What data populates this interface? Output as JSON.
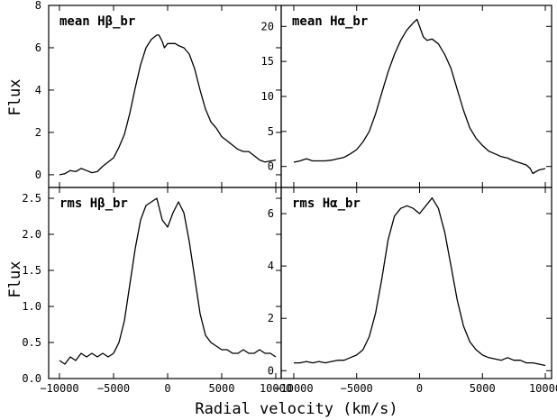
{
  "figure": {
    "ylabel_left": "Flux",
    "xlabel": "Radial velocity (km/s)"
  },
  "chart_data": [
    {
      "type": "line",
      "panel": "top-left",
      "label": "mean Hβ_br",
      "xlim": [
        -11000,
        10500
      ],
      "ylim": [
        -0.6,
        8
      ],
      "xticks": [
        -10000,
        -5000,
        0,
        5000,
        10000
      ],
      "yticks": [
        0,
        2,
        4,
        6,
        8
      ],
      "ytick_labels": [
        "0",
        "2",
        "4",
        "6",
        "8"
      ],
      "series": [
        {
          "x": [
            -10000,
            -9500,
            -9000,
            -8500,
            -8000,
            -7500,
            -7000,
            -6500,
            -6000,
            -5500,
            -5000,
            -4500,
            -4000,
            -3500,
            -3000,
            -2500,
            -2000,
            -1500,
            -1000,
            -800,
            -500,
            -300,
            0,
            300,
            700,
            1000,
            1500,
            2000,
            2500,
            3000,
            3500,
            4000,
            4500,
            5000,
            5500,
            6000,
            6500,
            7000,
            7500,
            8000,
            8500,
            9000,
            9500,
            10000
          ],
          "y": [
            0.0,
            0.05,
            0.2,
            0.15,
            0.3,
            0.2,
            0.1,
            0.15,
            0.4,
            0.6,
            0.8,
            1.3,
            1.9,
            2.9,
            4.1,
            5.2,
            6.0,
            6.4,
            6.6,
            6.6,
            6.3,
            6.0,
            6.2,
            6.2,
            6.2,
            6.1,
            6.0,
            5.7,
            5.0,
            4.0,
            3.1,
            2.5,
            2.2,
            1.8,
            1.6,
            1.4,
            1.2,
            1.1,
            1.1,
            0.9,
            0.7,
            0.6,
            0.65,
            0.7
          ]
        }
      ]
    },
    {
      "type": "line",
      "panel": "top-right",
      "label": "mean Hα_br",
      "xlim": [
        -11000,
        10500
      ],
      "ylim": [
        -3,
        23
      ],
      "xticks": [
        -10000,
        -5000,
        0,
        5000,
        10000
      ],
      "yticks": [
        0,
        5,
        10,
        15,
        20
      ],
      "ytick_labels": [
        "0",
        "5",
        "10",
        "15",
        "20"
      ],
      "series": [
        {
          "x": [
            -10000,
            -9500,
            -9000,
            -8500,
            -8000,
            -7500,
            -7000,
            -6500,
            -6000,
            -5500,
            -5000,
            -4500,
            -4000,
            -3500,
            -3000,
            -2500,
            -2000,
            -1500,
            -1000,
            -500,
            -200,
            0,
            300,
            600,
            1000,
            1500,
            2000,
            2500,
            3000,
            3500,
            4000,
            4500,
            5000,
            5500,
            6000,
            6500,
            7000,
            7500,
            8000,
            8500,
            8800,
            9000,
            9500,
            10000
          ],
          "y": [
            0.6,
            0.8,
            1.1,
            0.8,
            0.8,
            0.8,
            0.9,
            1.1,
            1.3,
            1.8,
            2.4,
            3.5,
            5.0,
            7.5,
            10.5,
            13.5,
            16.0,
            18.0,
            19.5,
            20.5,
            21.0,
            20.0,
            18.5,
            18.0,
            18.2,
            17.5,
            16.0,
            14.0,
            11.0,
            8.0,
            5.5,
            4.0,
            3.0,
            2.2,
            1.8,
            1.4,
            1.2,
            0.8,
            0.5,
            0.2,
            -0.3,
            -1.0,
            -0.5,
            -0.3
          ]
        }
      ]
    },
    {
      "type": "line",
      "panel": "bottom-left",
      "label": "rms Hβ_br",
      "xlim": [
        -11000,
        10500
      ],
      "ylim": [
        0,
        2.65
      ],
      "xticks": [
        -10000,
        -5000,
        0,
        5000,
        10000
      ],
      "xtick_labels": [
        "−10000",
        "−5000",
        "0",
        "5000",
        "10000"
      ],
      "yticks": [
        0,
        0.5,
        1,
        1.5,
        2,
        2.5
      ],
      "ytick_labels": [
        "0.0",
        "0.5",
        "1.0",
        "1.5",
        "2.0",
        "2.5"
      ],
      "series": [
        {
          "x": [
            -10000,
            -9500,
            -9000,
            -8500,
            -8000,
            -7500,
            -7000,
            -6500,
            -6000,
            -5500,
            -5000,
            -4500,
            -4000,
            -3500,
            -3000,
            -2500,
            -2000,
            -1500,
            -1000,
            -500,
            0,
            500,
            1000,
            1500,
            2000,
            2500,
            3000,
            3500,
            4000,
            4500,
            5000,
            5500,
            6000,
            6500,
            7000,
            7500,
            8000,
            8500,
            9000,
            9500,
            10000
          ],
          "y": [
            0.25,
            0.2,
            0.3,
            0.25,
            0.35,
            0.3,
            0.35,
            0.3,
            0.35,
            0.3,
            0.35,
            0.5,
            0.8,
            1.3,
            1.8,
            2.2,
            2.4,
            2.45,
            2.5,
            2.2,
            2.1,
            2.3,
            2.45,
            2.3,
            1.9,
            1.4,
            0.9,
            0.6,
            0.5,
            0.45,
            0.4,
            0.4,
            0.35,
            0.35,
            0.4,
            0.35,
            0.35,
            0.4,
            0.35,
            0.35,
            0.3
          ]
        }
      ]
    },
    {
      "type": "line",
      "panel": "bottom-right",
      "label": "rms Hα_br",
      "xlim": [
        -11000,
        10500
      ],
      "ylim": [
        -0.3,
        7
      ],
      "xticks": [
        -10000,
        -5000,
        0,
        5000,
        10000
      ],
      "xtick_labels": [
        "−10000",
        "−5000",
        "0",
        "5000",
        "10000"
      ],
      "yticks": [
        0,
        2,
        4,
        6
      ],
      "ytick_labels": [
        "0",
        "2",
        "4",
        "6"
      ],
      "series": [
        {
          "x": [
            -10000,
            -9500,
            -9000,
            -8500,
            -8000,
            -7500,
            -7000,
            -6500,
            -6000,
            -5500,
            -5000,
            -4500,
            -4000,
            -3500,
            -3000,
            -2500,
            -2000,
            -1500,
            -1000,
            -500,
            0,
            500,
            1000,
            1500,
            2000,
            2500,
            3000,
            3500,
            4000,
            4500,
            5000,
            5500,
            6000,
            6500,
            7000,
            7500,
            8000,
            8500,
            9000,
            9500,
            10000
          ],
          "y": [
            0.3,
            0.3,
            0.35,
            0.3,
            0.35,
            0.3,
            0.35,
            0.4,
            0.4,
            0.5,
            0.6,
            0.8,
            1.3,
            2.2,
            3.5,
            5.0,
            5.9,
            6.2,
            6.3,
            6.2,
            6.0,
            6.3,
            6.6,
            6.2,
            5.3,
            4.0,
            2.7,
            1.7,
            1.1,
            0.8,
            0.6,
            0.5,
            0.45,
            0.4,
            0.5,
            0.4,
            0.4,
            0.3,
            0.3,
            0.25,
            0.2
          ]
        }
      ]
    }
  ]
}
